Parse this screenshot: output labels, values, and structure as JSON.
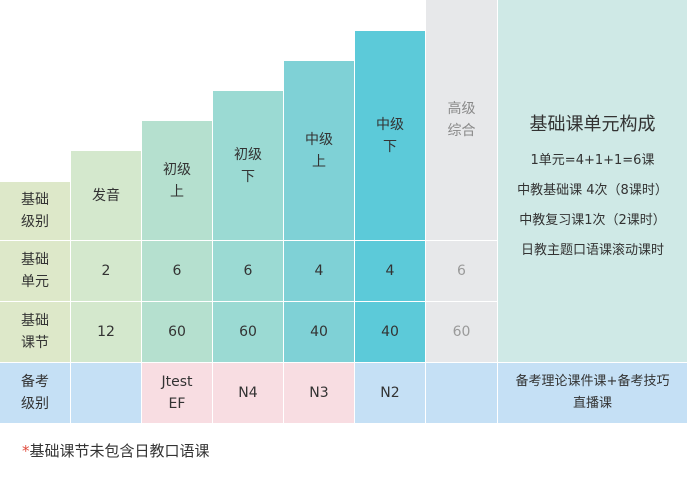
{
  "header": {
    "row_label": [
      "基础",
      "级别"
    ],
    "levels": [
      {
        "lines": [
          "发音"
        ]
      },
      {
        "lines": [
          "初级",
          "上"
        ]
      },
      {
        "lines": [
          "初级",
          "下"
        ]
      },
      {
        "lines": [
          "中级",
          "上"
        ]
      },
      {
        "lines": [
          "中级",
          "下"
        ]
      },
      {
        "lines": [
          "高级",
          "综合"
        ]
      }
    ]
  },
  "rows": [
    {
      "label": [
        "基础",
        "单元"
      ],
      "values": [
        "2",
        "6",
        "6",
        "4",
        "4",
        "6"
      ]
    },
    {
      "label": [
        "基础",
        "课节"
      ],
      "values": [
        "12",
        "60",
        "60",
        "40",
        "40",
        "60"
      ]
    },
    {
      "label": [
        "备考",
        "级别"
      ],
      "values": [
        "",
        "Jtest EF",
        "N4",
        "N3",
        "N2",
        ""
      ]
    }
  ],
  "summary": {
    "title": "基础课单元构成",
    "lines": [
      "1单元=4+1+1=6课",
      "中教基础课 4次（8课时）",
      "中教复习课1次（2课时）",
      "日教主题口语课滚动课时"
    ]
  },
  "exam_note": [
    "备考理论课件课+备考技巧",
    "直播课"
  ],
  "footnote": {
    "mark": "*",
    "text": "基础课节未包含日教口语课"
  },
  "colors": {
    "label_bg": "#dde8c9",
    "col_bg": [
      "#d4e8cd",
      "#b5e0cf",
      "#9bdad3",
      "#7fd1d6",
      "#5ccad9",
      "#e7e8ea"
    ],
    "exam_blue": "#c5e0f5",
    "exam_pink": "#f8dde2",
    "summary_bg": "#cfe9e6",
    "footnote_mark": "#e04a3c"
  }
}
